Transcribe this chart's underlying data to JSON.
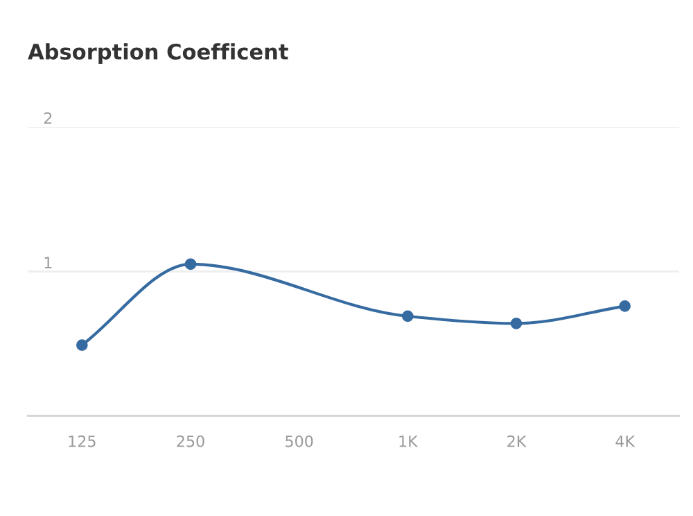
{
  "chart_data": {
    "type": "line",
    "title": "Absorption Coefficent",
    "categories": [
      "125",
      "250",
      "500",
      "1K",
      "2K",
      "4K"
    ],
    "series": [
      {
        "color": "#366ba1",
        "values": [
          0.49,
          1.05,
          null,
          0.69,
          0.64,
          0.76
        ]
      }
    ],
    "ylim": [
      0,
      2
    ],
    "yticks": [
      {
        "value": 0,
        "label": null
      },
      1,
      2
    ],
    "grid": "y",
    "marker": "circle",
    "line_style": "solid"
  }
}
